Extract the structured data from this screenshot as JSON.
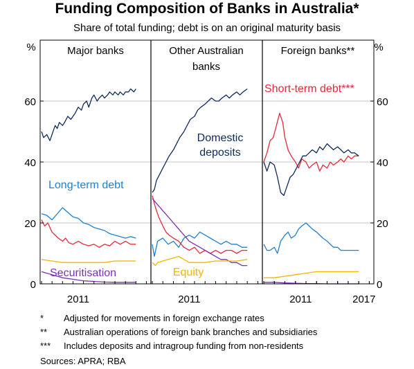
{
  "title": "Funding Composition of Banks in Australia*",
  "subtitle": "Share of total funding; debt is on an original maturity basis",
  "axis": {
    "left_unit": "%",
    "right_unit": "%"
  },
  "colors": {
    "domestic_deposits": "#0b2a5c",
    "long_term_debt": "#1f7fd1",
    "short_term_debt": "#e8283a",
    "securitisation": "#7b2fb5",
    "equity": "#f4b400",
    "grid": "#c6c6c6",
    "divider": "#000000"
  },
  "chart_data": [
    {
      "type": "line",
      "panel": "Major banks",
      "ylim": [
        0,
        80
      ],
      "yticks": [
        0,
        20,
        40,
        60
      ],
      "xlim": [
        2008.0,
        2018.3
      ],
      "xticks": [
        "2011"
      ],
      "labels": {
        "long_term_debt": "Long-term debt",
        "securitisation": "Securitisation"
      },
      "series": [
        {
          "key": "domestic_deposits",
          "name": "",
          "x": [
            2008.0,
            2008.2,
            2008.5,
            2008.8,
            2009.0,
            2009.3,
            2009.5,
            2009.7,
            2010.0,
            2010.2,
            2010.5,
            2010.8,
            2011.0,
            2011.2,
            2011.5,
            2011.8,
            2012.0,
            2012.3,
            2012.5,
            2012.8,
            2013.0,
            2013.3,
            2013.5,
            2013.8,
            2014.0,
            2014.3,
            2014.5,
            2014.8,
            2015.0,
            2015.3,
            2015.5,
            2015.8,
            2016.0,
            2016.3,
            2016.5,
            2016.8,
            2017.0
          ],
          "values": [
            50,
            48,
            49,
            47,
            49,
            52,
            51,
            53,
            52,
            53,
            55,
            54,
            55,
            56,
            58,
            57,
            59,
            60,
            58,
            61,
            62,
            60,
            61,
            62,
            61,
            62,
            63,
            62,
            63,
            62,
            63,
            62,
            63,
            63,
            64,
            63,
            64
          ]
        },
        {
          "key": "long_term_debt",
          "name": "",
          "x": [
            2008.0,
            2008.5,
            2009.0,
            2009.5,
            2010.0,
            2010.5,
            2011.0,
            2011.5,
            2012.0,
            2012.5,
            2013.0,
            2013.5,
            2014.0,
            2014.5,
            2015.0,
            2015.5,
            2016.0,
            2016.5,
            2017.0
          ],
          "values": [
            23,
            22.5,
            21,
            23,
            25,
            23.5,
            22,
            21.5,
            20,
            19.5,
            18.5,
            18,
            17.5,
            16.5,
            16,
            15.5,
            15,
            15.5,
            15
          ]
        },
        {
          "key": "short_term_debt",
          "name": "",
          "x": [
            2008.0,
            2008.3,
            2008.6,
            2009.0,
            2009.3,
            2009.6,
            2010.0,
            2010.3,
            2010.6,
            2011.0,
            2011.5,
            2012.0,
            2012.5,
            2013.0,
            2013.5,
            2014.0,
            2014.5,
            2015.0,
            2015.5,
            2016.0,
            2016.5,
            2017.0
          ],
          "values": [
            21,
            19,
            20,
            17,
            16,
            15,
            14,
            15,
            13.5,
            13,
            14,
            13,
            12.5,
            13,
            12,
            13,
            12.5,
            14,
            13,
            14,
            13,
            13
          ]
        },
        {
          "key": "equity",
          "name": "",
          "x": [
            2008.0,
            2009.0,
            2010.0,
            2011.0,
            2012.0,
            2013.0,
            2014.0,
            2015.0,
            2016.0,
            2017.0
          ],
          "values": [
            8,
            7.5,
            7,
            7,
            7,
            7,
            7,
            7.5,
            7.5,
            7.5
          ]
        },
        {
          "key": "securitisation",
          "name": "",
          "x": [
            2008.0,
            2008.5,
            2009.0,
            2010.0,
            2011.0,
            2012.0,
            2013.0,
            2014.0,
            2015.0,
            2016.0,
            2017.0
          ],
          "values": [
            4,
            3.5,
            3,
            2,
            1.5,
            1,
            0.8,
            0.6,
            0.5,
            0.5,
            0.5
          ]
        }
      ]
    },
    {
      "type": "line",
      "panel": "Other Australian banks",
      "ylim": [
        0,
        80
      ],
      "xlim": [
        2008.0,
        2018.3
      ],
      "xticks": [
        "2011"
      ],
      "labels": {
        "domestic_deposits": "Domestic deposits",
        "equity": "Equity"
      },
      "series": [
        {
          "key": "domestic_deposits",
          "name": "",
          "x": [
            2008.0,
            2008.2,
            2008.4,
            2008.7,
            2009.0,
            2009.3,
            2009.6,
            2010.0,
            2010.3,
            2010.6,
            2011.0,
            2011.3,
            2011.6,
            2012.0,
            2012.3,
            2012.6,
            2013.0,
            2013.3,
            2013.6,
            2014.0,
            2014.3,
            2014.6,
            2015.0,
            2015.3,
            2015.6,
            2016.0,
            2016.3,
            2016.6,
            2017.0
          ],
          "values": [
            30,
            31,
            34,
            36,
            38,
            40,
            42,
            44,
            46,
            48,
            50,
            52,
            54,
            55,
            57,
            58,
            59,
            60,
            61,
            60,
            60,
            61,
            62,
            61,
            62,
            63,
            62,
            63,
            64
          ]
        },
        {
          "key": "long_term_debt",
          "name": "",
          "x": [
            2008.0,
            2008.2,
            2008.5,
            2009.0,
            2009.5,
            2010.0,
            2010.5,
            2011.0,
            2011.5,
            2012.0,
            2012.5,
            2013.0,
            2013.5,
            2014.0,
            2014.5,
            2015.0,
            2015.5,
            2016.0,
            2016.5,
            2017.0
          ],
          "values": [
            13,
            9,
            14,
            15,
            13,
            14,
            12,
            15,
            16,
            15,
            17,
            16,
            15,
            14,
            13,
            14,
            13,
            13,
            12,
            12
          ]
        },
        {
          "key": "short_term_debt",
          "name": "",
          "x": [
            2008.0,
            2008.3,
            2008.6,
            2009.0,
            2009.3,
            2009.6,
            2010.0,
            2010.5,
            2011.0,
            2011.5,
            2012.0,
            2012.5,
            2013.0,
            2013.5,
            2014.0,
            2014.5,
            2015.0,
            2015.5,
            2016.0,
            2016.5,
            2017.0
          ],
          "values": [
            29,
            25,
            22,
            19,
            17,
            16,
            15,
            14,
            12,
            11,
            12,
            10,
            11,
            10,
            11,
            10,
            11,
            11,
            10,
            11,
            11
          ]
        },
        {
          "key": "securitisation",
          "name": "",
          "x": [
            2008.0,
            2008.5,
            2009.0,
            2009.5,
            2010.0,
            2010.5,
            2011.0,
            2011.5,
            2012.0,
            2012.5,
            2013.0,
            2013.5,
            2014.0,
            2014.5,
            2015.0,
            2015.5,
            2016.0,
            2016.5,
            2017.0
          ],
          "values": [
            28,
            26,
            24,
            22,
            20,
            18,
            16,
            14,
            13,
            12,
            11,
            10,
            9,
            8,
            8,
            7,
            7,
            6,
            6
          ]
        },
        {
          "key": "equity",
          "name": "",
          "x": [
            2008.0,
            2008.3,
            2008.5,
            2009.0,
            2009.5,
            2010.0,
            2010.5,
            2011.0,
            2011.5,
            2012.0,
            2013.0,
            2014.0,
            2015.0,
            2016.0,
            2017.0
          ],
          "values": [
            7,
            6,
            7,
            7.5,
            8,
            8.5,
            9,
            8,
            7,
            7,
            7,
            7.5,
            7.5,
            7.5,
            8
          ]
        }
      ]
    },
    {
      "type": "line",
      "panel": "Foreign banks**",
      "ylim": [
        0,
        80
      ],
      "yticks": [
        0,
        20,
        40,
        60
      ],
      "xlim": [
        2008.0,
        2018.3
      ],
      "xticks": [
        "2011",
        "2017"
      ],
      "labels": {
        "short_term_debt": "Short-term debt***"
      },
      "series": [
        {
          "key": "short_term_debt",
          "name": "",
          "x": [
            2008.0,
            2008.3,
            2008.6,
            2008.9,
            2009.2,
            2009.5,
            2009.8,
            2010.0,
            2010.3,
            2010.6,
            2011.0,
            2011.3,
            2011.6,
            2012.0,
            2012.3,
            2012.6,
            2013.0,
            2013.3,
            2013.6,
            2014.0,
            2014.3,
            2014.6,
            2015.0,
            2015.3,
            2015.6,
            2016.0,
            2016.3,
            2016.6,
            2017.0
          ],
          "values": [
            40,
            43,
            47,
            48,
            52,
            56,
            53,
            48,
            44,
            42,
            40,
            38,
            41,
            40,
            38,
            39,
            40,
            37,
            39,
            38,
            40,
            39,
            40,
            41,
            40,
            42,
            41,
            42,
            42
          ]
        },
        {
          "key": "domestic_deposits",
          "name": "",
          "x": [
            2008.0,
            2008.3,
            2008.6,
            2009.0,
            2009.3,
            2009.6,
            2009.9,
            2010.2,
            2010.5,
            2010.8,
            2011.1,
            2011.4,
            2011.7,
            2012.0,
            2012.3,
            2012.6,
            2013.0,
            2013.3,
            2013.6,
            2014.0,
            2014.3,
            2014.6,
            2015.0,
            2015.3,
            2015.6,
            2016.0,
            2016.3,
            2016.6,
            2017.0
          ],
          "values": [
            40,
            37,
            40,
            39,
            35,
            30,
            29,
            32,
            35,
            36,
            38,
            40,
            42,
            42,
            43,
            44,
            43,
            45,
            44,
            46,
            45,
            44,
            45,
            44,
            43,
            44,
            43,
            43,
            42
          ]
        },
        {
          "key": "long_term_debt",
          "name": "",
          "x": [
            2008.0,
            2008.3,
            2008.6,
            2009.0,
            2009.3,
            2009.6,
            2010.0,
            2010.3,
            2010.6,
            2011.0,
            2011.3,
            2011.6,
            2012.0,
            2012.3,
            2012.6,
            2013.0,
            2013.3,
            2013.6,
            2014.0,
            2014.3,
            2014.6,
            2015.0,
            2015.3,
            2015.6,
            2016.0,
            2016.3,
            2016.6,
            2017.0
          ],
          "values": [
            13,
            11,
            11,
            12,
            10,
            14,
            16,
            17,
            15,
            16,
            18,
            19,
            20,
            19,
            18,
            17,
            16,
            15,
            14,
            13,
            12,
            12,
            11,
            11,
            11,
            11,
            11,
            11
          ]
        },
        {
          "key": "equity",
          "name": "",
          "x": [
            2008.0,
            2009.0,
            2010.0,
            2011.0,
            2012.0,
            2013.0,
            2014.0,
            2015.0,
            2016.0,
            2017.0
          ],
          "values": [
            2,
            2,
            2.5,
            3,
            3.5,
            4,
            4,
            4,
            4,
            4
          ]
        },
        {
          "key": "securitisation",
          "name": "",
          "x": [
            2008.0,
            2009.0,
            2010.0,
            2011.0,
            2012.0,
            2013.0,
            2014.0,
            2015.0,
            2016.0,
            2017.0
          ],
          "values": [
            0.5,
            0.5,
            0.3,
            0.2,
            0.1,
            0.1,
            0,
            0,
            0,
            0
          ]
        }
      ]
    }
  ],
  "footnotes": [
    {
      "marker": "*",
      "text": "Adjusted for movements in foreign exchange rates"
    },
    {
      "marker": "**",
      "text": "Australian operations of foreign bank branches and subsidiaries"
    },
    {
      "marker": "***",
      "text": "Includes deposits and intragroup funding from non-residents"
    }
  ],
  "sources": "Sources:   APRA; RBA"
}
